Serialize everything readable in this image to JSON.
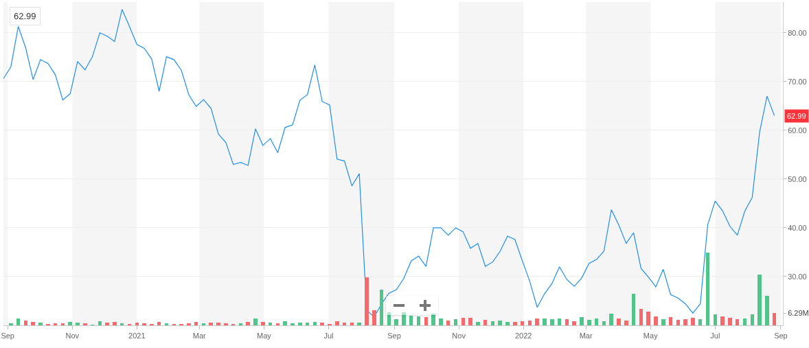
{
  "chart_data": {
    "type": "line",
    "x": [
      "2020-08-28",
      "2020-09-04",
      "2020-09-11",
      "2020-09-18",
      "2020-09-25",
      "2020-10-02",
      "2020-10-09",
      "2020-10-16",
      "2020-10-23",
      "2020-10-30",
      "2020-11-06",
      "2020-11-13",
      "2020-11-20",
      "2020-11-27",
      "2020-12-04",
      "2020-12-11",
      "2020-12-18",
      "2020-12-25",
      "2021-01-01",
      "2021-01-08",
      "2021-01-15",
      "2021-01-22",
      "2021-01-29",
      "2021-02-05",
      "2021-02-12",
      "2021-02-19",
      "2021-02-26",
      "2021-03-05",
      "2021-03-12",
      "2021-03-19",
      "2021-03-26",
      "2021-04-02",
      "2021-04-09",
      "2021-04-16",
      "2021-04-23",
      "2021-04-30",
      "2021-05-07",
      "2021-05-14",
      "2021-05-21",
      "2021-05-28",
      "2021-06-04",
      "2021-06-11",
      "2021-06-18",
      "2021-06-25",
      "2021-07-02",
      "2021-07-09",
      "2021-07-16",
      "2021-07-23",
      "2021-07-30",
      "2021-08-06",
      "2021-08-13",
      "2021-08-20",
      "2021-08-27",
      "2021-09-03",
      "2021-09-10",
      "2021-09-17",
      "2021-09-24",
      "2021-10-01",
      "2021-10-08",
      "2021-10-15",
      "2021-10-22",
      "2021-10-29",
      "2021-11-05",
      "2021-11-12",
      "2021-11-19",
      "2021-11-26",
      "2021-12-03",
      "2021-12-10",
      "2021-12-17",
      "2021-12-24",
      "2021-12-31",
      "2022-01-07",
      "2022-01-14",
      "2022-01-21",
      "2022-01-28",
      "2022-02-04",
      "2022-02-11",
      "2022-02-18",
      "2022-02-25",
      "2022-03-04",
      "2022-03-11",
      "2022-03-18",
      "2022-03-25",
      "2022-04-01",
      "2022-04-08",
      "2022-04-15",
      "2022-04-22",
      "2022-04-29",
      "2022-05-06",
      "2022-05-13",
      "2022-05-20",
      "2022-05-27",
      "2022-06-03",
      "2022-06-10",
      "2022-06-17",
      "2022-06-24",
      "2022-07-01",
      "2022-07-08",
      "2022-07-15",
      "2022-07-22",
      "2022-07-29",
      "2022-08-05",
      "2022-08-12",
      "2022-08-19",
      "2022-08-26"
    ],
    "series": [
      {
        "type": "bar",
        "axis": "y2",
        "values": [
          null,
          1.0,
          3.5,
          2.3,
          1.9,
          1.5,
          0.8,
          1.0,
          1.0,
          1.9,
          1.5,
          1.0,
          0.5,
          2.2,
          1.5,
          1.9,
          1.0,
          0.8,
          1.5,
          1.0,
          0.8,
          1.9,
          1.0,
          0.8,
          0.8,
          1.0,
          1.9,
          1.0,
          1.5,
          1.5,
          1.0,
          0.8,
          1.0,
          1.9,
          3.5,
          1.9,
          1.5,
          1.0,
          2.2,
          1.0,
          1.5,
          1.5,
          1.9,
          1.5,
          0.8,
          2.2,
          1.5,
          1.5,
          1.5,
          24.4,
          7.7,
          18.1,
          6.6,
          3.1,
          6.6,
          4.9,
          4.5,
          4.2,
          5.9,
          3.5,
          2.4,
          3.1,
          3.8,
          3.8,
          1.7,
          2.8,
          2.1,
          2.4,
          1.7,
          1.7,
          2.2,
          2.5,
          3.6,
          3.6,
          3.1,
          3.6,
          3.1,
          2.2,
          4.3,
          2.9,
          3.6,
          2.2,
          6.0,
          3.6,
          2.5,
          16.2,
          8.4,
          7.0,
          4.6,
          3.1,
          4.3,
          2.9,
          3.1,
          3.9,
          3.1,
          37.1,
          5.7,
          4.6,
          3.9,
          3.1,
          3.6,
          5.7,
          25.8,
          15.0,
          6.29
        ],
        "colors": [
          "#f4696b",
          "#4fc58a",
          "#4fc58a",
          "#f4696b",
          "#f4696b",
          "#4fc58a",
          "#f4696b",
          "#f4696b",
          "#f4696b",
          "#4fc58a",
          "#4fc58a",
          "#f4696b",
          "#4fc58a",
          "#4fc58a",
          "#f4696b",
          "#f4696b",
          "#4fc58a",
          "#f4696b",
          "#f4696b",
          "#f4696b",
          "#f4696b",
          "#f4696b",
          "#4fc58a",
          "#f4696b",
          "#f4696b",
          "#f4696b",
          "#f4696b",
          "#4fc58a",
          "#f4696b",
          "#f4696b",
          "#f4696b",
          "#f4696b",
          "#4fc58a",
          "#f4696b",
          "#4fc58a",
          "#f4696b",
          "#4fc58a",
          "#f4696b",
          "#4fc58a",
          "#4fc58a",
          "#4fc58a",
          "#4fc58a",
          "#4fc58a",
          "#f4696b",
          "#f4696b",
          "#f4696b",
          "#f4696b",
          "#f4696b",
          "#4fc58a",
          "#f4696b",
          "#f4696b",
          "#4fc58a",
          "#4fc58a",
          "#4fc58a",
          "#4fc58a",
          "#4fc58a",
          "#4fc58a",
          "#f4696b",
          "#4fc58a",
          "#4fc58a",
          "#f4696b",
          "#4fc58a",
          "#f4696b",
          "#f4696b",
          "#4fc58a",
          "#f4696b",
          "#4fc58a",
          "#4fc58a",
          "#4fc58a",
          "#f4696b",
          "#f4696b",
          "#f4696b",
          "#f4696b",
          "#4fc58a",
          "#4fc58a",
          "#4fc58a",
          "#f4696b",
          "#f4696b",
          "#4fc58a",
          "#4fc58a",
          "#4fc58a",
          "#4fc58a",
          "#4fc58a",
          "#f4696b",
          "#f4696b",
          "#4fc58a",
          "#f4696b",
          "#f4696b",
          "#f4696b",
          "#4fc58a",
          "#f4696b",
          "#f4696b",
          "#f4696b",
          "#f4696b",
          "#4fc58a",
          "#4fc58a",
          "#4fc58a",
          "#f4696b",
          "#f4696b",
          "#f4696b",
          "#4fc58a",
          "#4fc58a",
          "#4fc58a",
          "#4fc58a",
          "#f4696b"
        ]
      },
      {
        "color": "#1e8ff0",
        "values": [
          70.6,
          73.0,
          81.3,
          76.9,
          70.4,
          74.5,
          73.7,
          71.4,
          66.2,
          67.5,
          74.1,
          72.4,
          75.1,
          80.0,
          79.3,
          78.2,
          84.8,
          81.3,
          77.6,
          76.8,
          74.6,
          68.0,
          75.1,
          74.5,
          72.3,
          67.3,
          64.9,
          66.3,
          64.5,
          59.2,
          57.5,
          53.0,
          53.4,
          52.8,
          60.3,
          56.9,
          58.3,
          55.4,
          60.6,
          61.1,
          66.2,
          67.3,
          73.4,
          65.9,
          65.2,
          54.1,
          53.7,
          48.6,
          51.1,
          23.1,
          21.7,
          24.4,
          26.6,
          27.3,
          29.6,
          33.2,
          34.2,
          32.1,
          40.0,
          40.0,
          38.5,
          40.0,
          39.2,
          35.8,
          36.8,
          32.1,
          33.0,
          35.2,
          38.3,
          37.6,
          33.2,
          29.0,
          23.7,
          26.5,
          28.6,
          32.0,
          29.4,
          28.0,
          29.7,
          32.7,
          33.5,
          35.2,
          43.7,
          40.6,
          36.8,
          39.0,
          31.7,
          29.9,
          27.9,
          31.5,
          26.3,
          25.6,
          24.4,
          22.5,
          24.4,
          40.6,
          45.5,
          43.5,
          40.3,
          38.5,
          43.4,
          46.2,
          59.6,
          67.0,
          62.99
        ]
      }
    ],
    "xlim": [
      "2020-08-28",
      "2022-09-03"
    ],
    "xticks": [
      {
        "value": "2020-09-01",
        "label": "Sep"
      },
      {
        "value": "2020-11-01",
        "label": "Nov"
      },
      {
        "value": "2021-01-01",
        "label": "2021"
      },
      {
        "value": "2021-03-01",
        "label": "Mar"
      },
      {
        "value": "2021-05-01",
        "label": "May"
      },
      {
        "value": "2021-07-01",
        "label": "Jul"
      },
      {
        "value": "2021-09-01",
        "label": "Sep"
      },
      {
        "value": "2021-11-01",
        "label": "Nov"
      },
      {
        "value": "2022-01-01",
        "label": "2022"
      },
      {
        "value": "2022-03-01",
        "label": "Mar"
      },
      {
        "value": "2022-05-01",
        "label": "May"
      },
      {
        "value": "2022-07-01",
        "label": "Jul"
      },
      {
        "value": "2022-09-01",
        "label": "Sep"
      }
    ],
    "ylim": [
      20.0,
      86.3
    ],
    "yticks": [
      {
        "value": 30,
        "label": "30.00"
      },
      {
        "value": 40,
        "label": "40.00"
      },
      {
        "value": 50,
        "label": "50.00"
      },
      {
        "value": 60,
        "label": "60.00"
      },
      {
        "value": 70,
        "label": "70.00"
      },
      {
        "value": 80,
        "label": "80.00"
      }
    ],
    "y2lim": [
      0,
      165
    ],
    "y2ticks": [
      {
        "value": 6.29,
        "label": "6.29M"
      }
    ],
    "bands": [
      {
        "axis": "x",
        "from": "2020-08-28",
        "to": "2020-09-01",
        "color": "#f5f5f5"
      },
      {
        "axis": "x",
        "from": "2020-11-01",
        "to": "2021-01-01",
        "color": "#f5f5f5"
      },
      {
        "axis": "x",
        "from": "2021-03-01",
        "to": "2021-05-01",
        "color": "#f5f5f5"
      },
      {
        "axis": "x",
        "from": "2021-07-01",
        "to": "2021-09-01",
        "color": "#f5f5f5"
      },
      {
        "axis": "x",
        "from": "2021-11-01",
        "to": "2022-01-01",
        "color": "#f5f5f5"
      },
      {
        "axis": "x",
        "from": "2022-03-01",
        "to": "2022-05-01",
        "color": "#f5f5f5"
      },
      {
        "axis": "x",
        "from": "2022-07-01",
        "to": "2022-09-01",
        "color": "#f5f5f5"
      }
    ],
    "annotations": [
      "62.99",
      {
        "text": "62.99",
        "y": 62.99
      }
    ],
    "grid": "y"
  }
}
